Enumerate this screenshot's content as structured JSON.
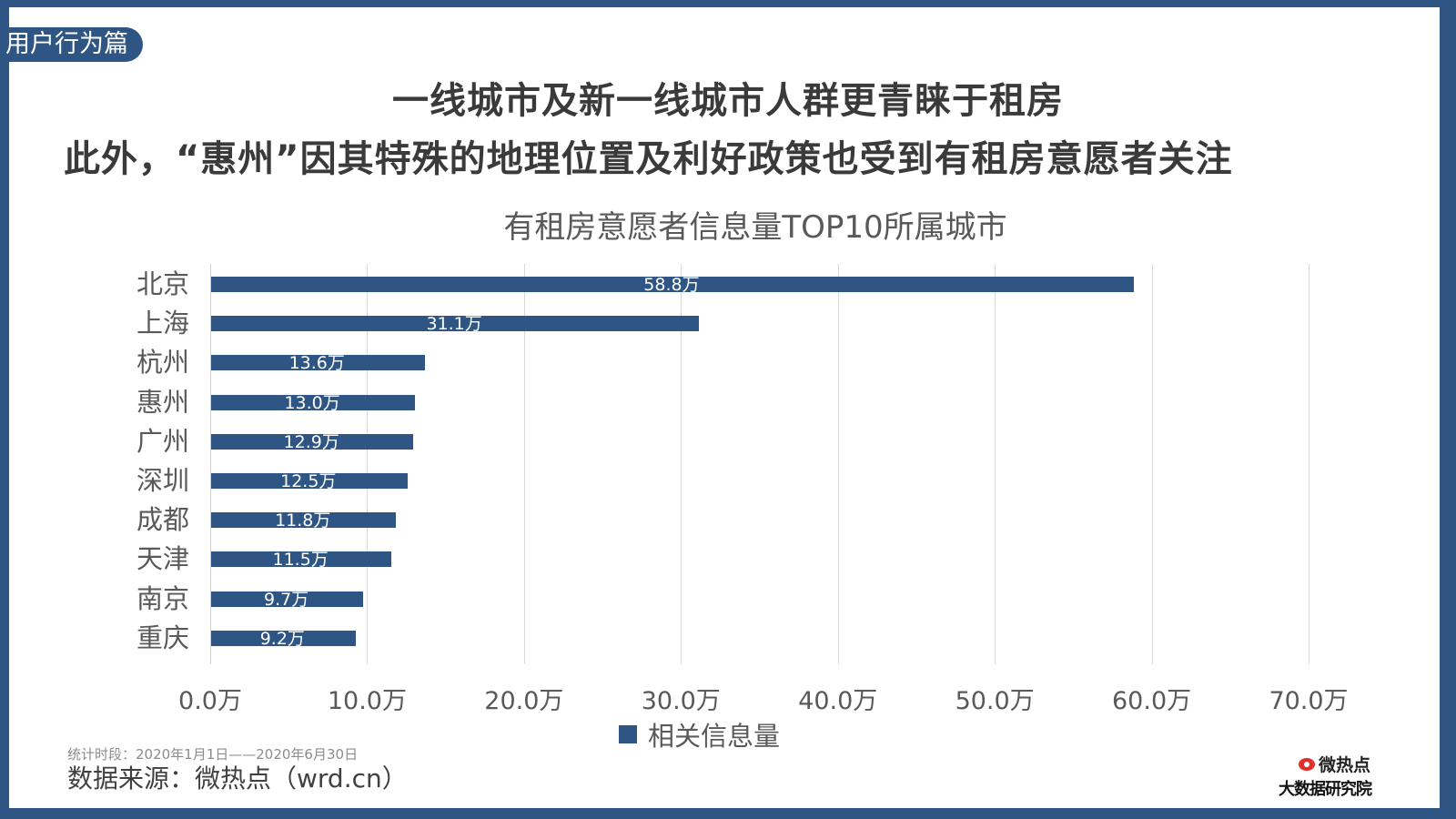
{
  "section_tag": "用户行为篇",
  "headline": {
    "line1": "一线城市及新一线城市人群更青睐于租房",
    "line2": "此外，“惠州”因其特殊的地理位置及利好政策也受到有租房意愿者关注"
  },
  "colors": {
    "bar": "#2e5584",
    "frame": "#2e5584",
    "text": "#3a3a3a",
    "axis_text": "#595959"
  },
  "chart_data": {
    "type": "bar",
    "orientation": "horizontal",
    "title": "有租房意愿者信息量TOP10所属城市",
    "categories": [
      "北京",
      "上海",
      "杭州",
      "惠州",
      "广州",
      "深圳",
      "成都",
      "天津",
      "南京",
      "重庆"
    ],
    "series": [
      {
        "name": "相关信息量",
        "values": [
          58.8,
          31.1,
          13.6,
          13.0,
          12.9,
          12.5,
          11.8,
          11.5,
          9.7,
          9.2
        ]
      }
    ],
    "data_labels": [
      "58.8万",
      "31.1万",
      "13.6万",
      "13.0万",
      "12.9万",
      "12.5万",
      "11.8万",
      "11.5万",
      "9.7万",
      "9.2万"
    ],
    "xlabel": "",
    "ylabel": "",
    "unit": "万",
    "xlim": [
      0,
      70
    ],
    "x_ticks": [
      "0.0万",
      "10.0万",
      "20.0万",
      "30.0万",
      "40.0万",
      "50.0万",
      "60.0万",
      "70.0万"
    ],
    "grid": true,
    "legend_position": "bottom"
  },
  "footer": {
    "period": "统计时段：2020年1月1日——2020年6月30日",
    "source": "数据来源：微热点（wrd.cn）",
    "logo_top": "微热点",
    "logo_bottom": "大数据研究院"
  }
}
